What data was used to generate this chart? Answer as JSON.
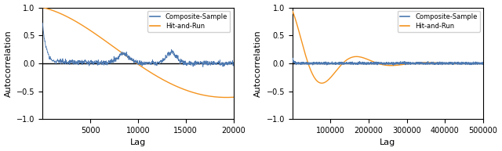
{
  "fig_width": 6.4,
  "fig_height": 1.93,
  "dpi": 100,
  "subplot1": {
    "xlim": [
      0,
      20000
    ],
    "ylim": [
      -1.0,
      1.0
    ],
    "xlabel": "Lag",
    "ylabel": "Autocorrelation",
    "xticks": [
      5000,
      10000,
      15000,
      20000
    ],
    "yticks": [
      -1.0,
      -0.5,
      0.0,
      0.5,
      1.0
    ],
    "composite_color": "#4c78b0",
    "har_color": "#f5941e",
    "legend_labels": [
      "Composite-Sample",
      "Hit-and-Run"
    ]
  },
  "subplot2": {
    "xlim": [
      0,
      500000
    ],
    "ylim": [
      -1.0,
      1.0
    ],
    "xlabel": "Lag",
    "ylabel": "Autocorrelation",
    "xticks": [
      100000,
      200000,
      300000,
      400000,
      500000
    ],
    "yticks": [
      -1.0,
      -0.5,
      0.0,
      0.5,
      1.0
    ],
    "composite_color": "#4c78b0",
    "har_color": "#f5941e",
    "legend_labels": [
      "Composite-Sample",
      "Hit-and-Run"
    ]
  }
}
